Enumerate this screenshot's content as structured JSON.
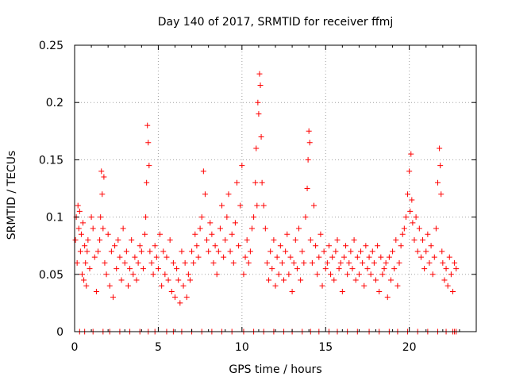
{
  "chart_data": {
    "type": "scatter",
    "title": "Day 140 of 2017, SRMTID for receiver ffmj",
    "xlabel": "GPS time / hours",
    "ylabel": "SRMTID / TECUs",
    "xlim": [
      0,
      24
    ],
    "ylim": [
      0,
      0.25
    ],
    "x_ticks": [
      0,
      5,
      10,
      15,
      20
    ],
    "x_tick_labels": [
      "0",
      "5",
      "10",
      "15",
      "20"
    ],
    "y_ticks": [
      0,
      0.05,
      0.1,
      0.15,
      0.2,
      0.25
    ],
    "y_tick_labels": [
      "0",
      "0.05",
      "0.1",
      "0.15",
      "0.2",
      "0.25"
    ],
    "grid": true,
    "marker": "plus",
    "colors": {
      "series": "#ff0000",
      "grid": "#a0a0a0",
      "axis": "#000000"
    },
    "series": [
      {
        "name": "SRMTID",
        "x": [
          0.05,
          0.1,
          0.15,
          0.2,
          0.25,
          0.3,
          0.35,
          0.4,
          0.45,
          0.5,
          0.55,
          0.6,
          0.65,
          0.7,
          0.75,
          0.8,
          0.9,
          1.0,
          1.1,
          1.2,
          1.3,
          1.4,
          1.5,
          1.55,
          1.6,
          1.65,
          1.7,
          1.75,
          1.8,
          1.9,
          2.0,
          2.1,
          2.2,
          2.3,
          2.4,
          2.5,
          2.6,
          2.7,
          2.8,
          2.9,
          3.0,
          3.1,
          3.2,
          3.3,
          3.4,
          3.5,
          3.6,
          3.7,
          3.8,
          3.9,
          4.0,
          4.1,
          4.2,
          4.25,
          4.3,
          4.35,
          4.4,
          4.45,
          4.5,
          4.6,
          4.7,
          4.8,
          4.9,
          5.0,
          5.1,
          5.2,
          5.3,
          5.4,
          5.5,
          5.6,
          5.7,
          5.8,
          5.9,
          6.0,
          6.1,
          6.2,
          6.3,
          6.4,
          6.5,
          6.6,
          6.7,
          6.8,
          6.9,
          7.0,
          7.1,
          7.2,
          7.3,
          7.4,
          7.5,
          7.6,
          7.7,
          7.8,
          7.9,
          8.0,
          8.1,
          8.2,
          8.3,
          8.4,
          8.5,
          8.6,
          8.7,
          8.8,
          8.9,
          9.0,
          9.1,
          9.2,
          9.3,
          9.4,
          9.5,
          9.6,
          9.7,
          9.8,
          9.9,
          10.0,
          10.1,
          10.2,
          10.3,
          10.4,
          10.5,
          10.6,
          10.7,
          10.8,
          10.85,
          10.9,
          10.95,
          11.0,
          11.05,
          11.1,
          11.15,
          11.2,
          11.3,
          11.4,
          11.5,
          11.6,
          11.7,
          11.8,
          11.9,
          12.0,
          12.1,
          12.2,
          12.3,
          12.4,
          12.5,
          12.6,
          12.7,
          12.8,
          12.9,
          13.0,
          13.1,
          13.2,
          13.3,
          13.4,
          13.5,
          13.6,
          13.7,
          13.8,
          13.9,
          13.95,
          14.0,
          14.05,
          14.1,
          14.2,
          14.3,
          14.4,
          14.5,
          14.6,
          14.7,
          14.8,
          14.9,
          15.0,
          15.1,
          15.2,
          15.3,
          15.4,
          15.5,
          15.6,
          15.7,
          15.8,
          15.9,
          16.0,
          16.1,
          16.2,
          16.3,
          16.4,
          16.5,
          16.6,
          16.7,
          16.8,
          16.9,
          17.0,
          17.1,
          17.2,
          17.3,
          17.4,
          17.5,
          17.6,
          17.7,
          17.8,
          17.9,
          18.0,
          18.1,
          18.2,
          18.3,
          18.4,
          18.5,
          18.6,
          18.7,
          18.8,
          18.9,
          19.0,
          19.1,
          19.2,
          19.3,
          19.4,
          19.5,
          19.6,
          19.7,
          19.8,
          19.9,
          20.0,
          20.05,
          20.1,
          20.15,
          20.2,
          20.3,
          20.4,
          20.5,
          20.6,
          20.7,
          20.8,
          20.9,
          21.0,
          21.1,
          21.2,
          21.3,
          21.4,
          21.5,
          21.6,
          21.7,
          21.8,
          21.85,
          21.9,
          21.95,
          22.0,
          22.1,
          22.2,
          22.3,
          22.4,
          22.5,
          22.6,
          22.7,
          22.8
        ],
        "y": [
          0.08,
          0.1,
          0.06,
          0.11,
          0.09,
          0.105,
          0.07,
          0.085,
          0.05,
          0.095,
          0.045,
          0.075,
          0.06,
          0.04,
          0.07,
          0.08,
          0.055,
          0.1,
          0.09,
          0.065,
          0.035,
          0.07,
          0.08,
          0.1,
          0.14,
          0.12,
          0.09,
          0.135,
          0.06,
          0.05,
          0.085,
          0.04,
          0.07,
          0.03,
          0.075,
          0.055,
          0.08,
          0.065,
          0.045,
          0.09,
          0.06,
          0.07,
          0.04,
          0.055,
          0.08,
          0.05,
          0.065,
          0.045,
          0.06,
          0.075,
          0.07,
          0.055,
          0.085,
          0.1,
          0.13,
          0.18,
          0.165,
          0.145,
          0.07,
          0.06,
          0.05,
          0.075,
          0.065,
          0.055,
          0.085,
          0.04,
          0.07,
          0.05,
          0.065,
          0.045,
          0.08,
          0.035,
          0.06,
          0.03,
          0.055,
          0.045,
          0.025,
          0.07,
          0.04,
          0.06,
          0.03,
          0.05,
          0.045,
          0.07,
          0.06,
          0.085,
          0.075,
          0.065,
          0.09,
          0.1,
          0.14,
          0.12,
          0.08,
          0.07,
          0.095,
          0.085,
          0.06,
          0.075,
          0.05,
          0.07,
          0.09,
          0.11,
          0.065,
          0.08,
          0.1,
          0.12,
          0.07,
          0.085,
          0.06,
          0.095,
          0.13,
          0.075,
          0.11,
          0.145,
          0.05,
          0.065,
          0.08,
          0.06,
          0.07,
          0.09,
          0.1,
          0.13,
          0.16,
          0.11,
          0.2,
          0.19,
          0.225,
          0.215,
          0.17,
          0.13,
          0.11,
          0.09,
          0.06,
          0.045,
          0.07,
          0.055,
          0.08,
          0.04,
          0.065,
          0.05,
          0.075,
          0.06,
          0.045,
          0.07,
          0.085,
          0.05,
          0.065,
          0.035,
          0.06,
          0.08,
          0.055,
          0.09,
          0.045,
          0.07,
          0.06,
          0.1,
          0.125,
          0.15,
          0.175,
          0.165,
          0.08,
          0.06,
          0.11,
          0.075,
          0.05,
          0.065,
          0.085,
          0.04,
          0.07,
          0.055,
          0.06,
          0.075,
          0.05,
          0.065,
          0.045,
          0.07,
          0.08,
          0.055,
          0.06,
          0.035,
          0.065,
          0.075,
          0.05,
          0.06,
          0.07,
          0.055,
          0.08,
          0.045,
          0.065,
          0.05,
          0.07,
          0.06,
          0.04,
          0.075,
          0.055,
          0.065,
          0.05,
          0.07,
          0.06,
          0.045,
          0.075,
          0.035,
          0.065,
          0.05,
          0.055,
          0.06,
          0.03,
          0.065,
          0.045,
          0.07,
          0.055,
          0.08,
          0.04,
          0.06,
          0.075,
          0.085,
          0.09,
          0.1,
          0.12,
          0.14,
          0.105,
          0.155,
          0.115,
          0.095,
          0.08,
          0.1,
          0.07,
          0.09,
          0.065,
          0.08,
          0.055,
          0.07,
          0.085,
          0.06,
          0.075,
          0.05,
          0.065,
          0.09,
          0.13,
          0.16,
          0.145,
          0.12,
          0.07,
          0.06,
          0.045,
          0.055,
          0.04,
          0.065,
          0.05,
          0.035,
          0.06,
          0.055
        ]
      }
    ],
    "baseline_x": [
      0.3,
      0.6,
      1.1,
      1.7,
      2.1,
      2.7,
      3.3,
      3.9,
      4.4,
      4.8,
      5.5,
      5.9,
      6.4,
      7.0,
      7.6,
      8.2,
      8.8,
      9.4,
      10.1,
      10.7,
      11.3,
      11.9,
      12.5,
      13.0,
      13.6,
      14.1,
      14.6,
      15.2,
      15.7,
      16.3,
      16.9,
      17.6,
      18.2,
      18.8,
      19.3,
      19.9,
      20.5,
      21.1,
      21.7,
      22.2,
      22.6,
      22.7,
      22.8
    ]
  }
}
